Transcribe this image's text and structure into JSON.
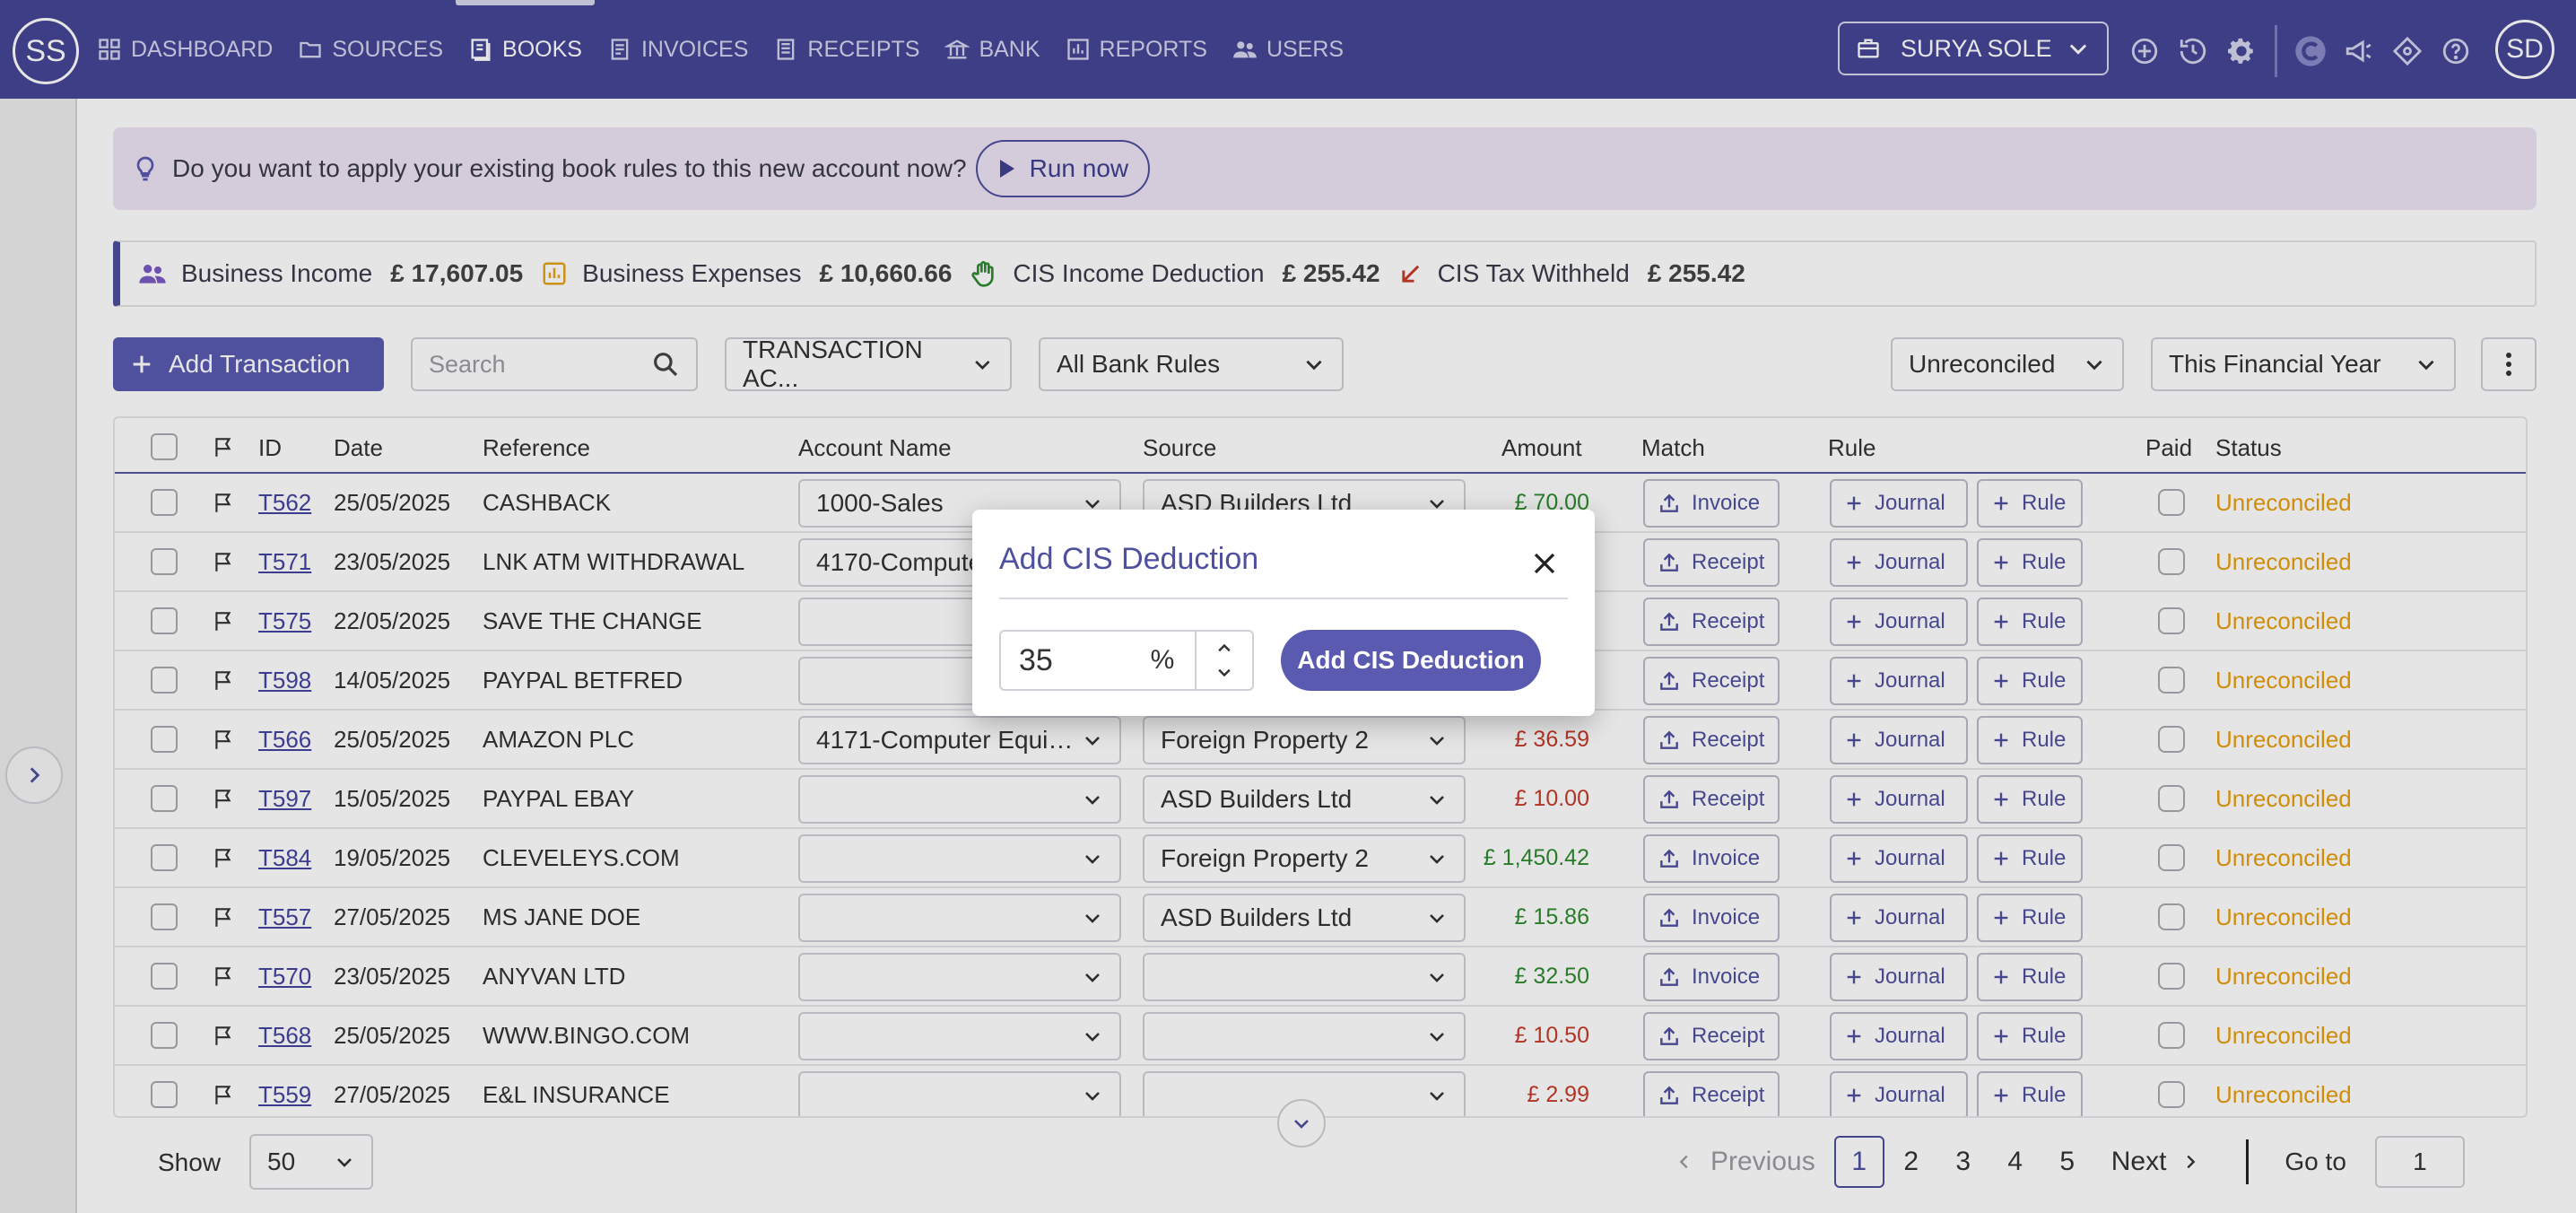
{
  "app": {
    "logo_initials": "SS",
    "avatar_initials": "SD",
    "company": "SURYA SOLE"
  },
  "nav": [
    {
      "label": "DASHBOARD",
      "icon": "grid-icon"
    },
    {
      "label": "SOURCES",
      "icon": "folder-icon"
    },
    {
      "label": "BOOKS",
      "icon": "book-icon",
      "active": true
    },
    {
      "label": "INVOICES",
      "icon": "invoice-icon"
    },
    {
      "label": "RECEIPTS",
      "icon": "receipt-icon"
    },
    {
      "label": "BANK",
      "icon": "bank-icon"
    },
    {
      "label": "REPORTS",
      "icon": "report-icon"
    },
    {
      "label": "USERS",
      "icon": "users-icon"
    }
  ],
  "prompt": {
    "text": "Do you want to apply your existing book rules to this new account now?",
    "button": "Run now"
  },
  "summary": [
    {
      "label": "Business Income",
      "value": "£ 17,607.05"
    },
    {
      "label": "Business Expenses",
      "value": "£ 10,660.66"
    },
    {
      "label": "CIS Income Deduction",
      "value": "£ 255.42"
    },
    {
      "label": "CIS Tax Withheld",
      "value": "£ 255.42"
    }
  ],
  "toolbar": {
    "add_label": "Add Transaction",
    "search_placeholder": "Search",
    "account_filter": "TRANSACTION AC...",
    "rules_filter": "All Bank Rules",
    "status_filter": "Unreconciled",
    "period_filter": "This Financial Year"
  },
  "table": {
    "headers": [
      "ID",
      "Date",
      "Reference",
      "Account Name",
      "Source",
      "Amount",
      "Match",
      "Rule",
      "Paid",
      "Status"
    ],
    "journal_label": "Journal",
    "rule_label": "Rule",
    "rows": [
      {
        "id": "T562",
        "date": "25/05/2025",
        "ref": "CASHBACK",
        "account": "1000-Sales",
        "source": "ASD Builders Ltd",
        "amount": "£ 70.00",
        "sign": "pos",
        "match": "Invoice",
        "status": "Unreconciled"
      },
      {
        "id": "T571",
        "date": "23/05/2025",
        "ref": "LNK ATM WITHDRAWAL",
        "account": "4170-Computer",
        "source": "",
        "amount": "",
        "sign": "neg",
        "match": "Receipt",
        "status": "Unreconciled"
      },
      {
        "id": "T575",
        "date": "22/05/2025",
        "ref": "SAVE THE CHANGE",
        "account": "",
        "source": "",
        "amount": "",
        "sign": "neg",
        "match": "Receipt",
        "status": "Unreconciled"
      },
      {
        "id": "T598",
        "date": "14/05/2025",
        "ref": "PAYPAL BETFRED",
        "account": "",
        "source": "",
        "amount": "",
        "sign": "neg",
        "match": "Receipt",
        "status": "Unreconciled"
      },
      {
        "id": "T566",
        "date": "25/05/2025",
        "ref": "AMAZON PLC",
        "account": "4171-Computer Equip...",
        "source": "Foreign Property 2",
        "amount": "£ 36.59",
        "sign": "neg",
        "match": "Receipt",
        "status": "Unreconciled"
      },
      {
        "id": "T597",
        "date": "15/05/2025",
        "ref": "PAYPAL EBAY",
        "account": "",
        "source": "ASD Builders Ltd",
        "amount": "£ 10.00",
        "sign": "neg",
        "match": "Receipt",
        "status": "Unreconciled"
      },
      {
        "id": "T584",
        "date": "19/05/2025",
        "ref": "CLEVELEYS.COM",
        "account": "",
        "source": "Foreign Property 2",
        "amount": "£ 1,450.42",
        "sign": "pos",
        "match": "Invoice",
        "status": "Unreconciled"
      },
      {
        "id": "T557",
        "date": "27/05/2025",
        "ref": "MS JANE DOE",
        "account": "",
        "source": "ASD Builders Ltd",
        "amount": "£ 15.86",
        "sign": "pos",
        "match": "Invoice",
        "status": "Unreconciled"
      },
      {
        "id": "T570",
        "date": "23/05/2025",
        "ref": "ANYVAN LTD",
        "account": "",
        "source": "",
        "amount": "£ 32.50",
        "sign": "pos",
        "match": "Invoice",
        "status": "Unreconciled"
      },
      {
        "id": "T568",
        "date": "25/05/2025",
        "ref": "WWW.BINGO.COM",
        "account": "",
        "source": "",
        "amount": "£ 10.50",
        "sign": "neg",
        "match": "Receipt",
        "status": "Unreconciled"
      },
      {
        "id": "T559",
        "date": "27/05/2025",
        "ref": "E&L INSURANCE",
        "account": "",
        "source": "",
        "amount": "£ 2.99",
        "sign": "neg",
        "match": "Receipt",
        "status": "Unreconciled"
      }
    ]
  },
  "footer": {
    "show_label": "Show",
    "page_size": "50",
    "prev_label": "Previous",
    "pages": [
      "1",
      "2",
      "3",
      "4",
      "5"
    ],
    "current_page": "1",
    "next_label": "Next",
    "goto_label": "Go to",
    "goto_value": "1"
  },
  "modal": {
    "title": "Add CIS Deduction",
    "percent_value": "35",
    "percent_symbol": "%",
    "submit_label": "Add CIS Deduction"
  },
  "colors": {
    "header_bg": "#454695",
    "accent": "#5a5bb0",
    "positive": "#2e8b2e",
    "negative": "#c63a2a",
    "status_unreconciled": "#e89e0b",
    "prompt_bg": "#ede2f4"
  }
}
